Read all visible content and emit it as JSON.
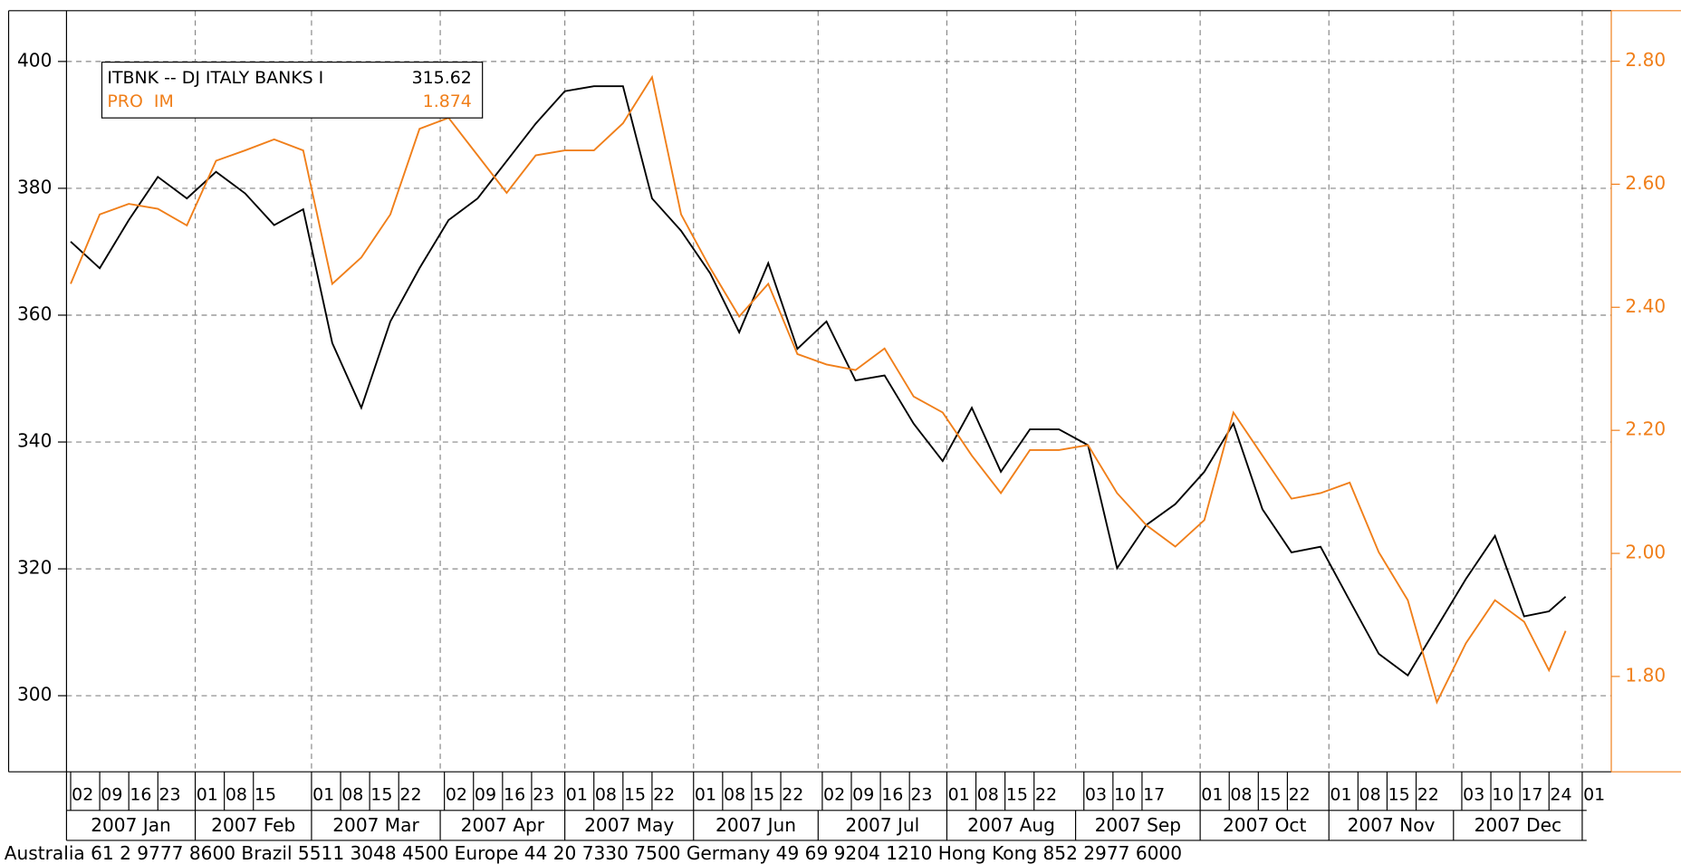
{
  "chart_data": {
    "type": "line",
    "x": [
      "2007-01-02",
      "2007-01-09",
      "2007-01-16",
      "2007-01-23",
      "2007-01-30",
      "2007-02-06",
      "2007-02-13",
      "2007-02-20",
      "2007-02-27",
      "2007-03-06",
      "2007-03-13",
      "2007-03-20",
      "2007-03-27",
      "2007-04-03",
      "2007-04-10",
      "2007-04-17",
      "2007-04-24",
      "2007-05-01",
      "2007-05-08",
      "2007-05-15",
      "2007-05-22",
      "2007-05-29",
      "2007-06-05",
      "2007-06-12",
      "2007-06-19",
      "2007-06-26",
      "2007-07-03",
      "2007-07-10",
      "2007-07-17",
      "2007-07-24",
      "2007-07-31",
      "2007-08-07",
      "2007-08-14",
      "2007-08-21",
      "2007-08-28",
      "2007-09-04",
      "2007-09-11",
      "2007-09-18",
      "2007-09-25",
      "2007-10-02",
      "2007-10-09",
      "2007-10-16",
      "2007-10-23",
      "2007-10-30",
      "2007-11-06",
      "2007-11-13",
      "2007-11-20",
      "2007-11-27",
      "2007-12-04",
      "2007-12-11",
      "2007-12-18",
      "2007-12-24",
      "2007-12-28"
    ],
    "series": [
      {
        "name": "ITBNK -- DJ ITALY BANKS I",
        "color": "#000000",
        "last_value": 315.62,
        "values": [
          371.6,
          367.4,
          375,
          381.8,
          378.4,
          382.6,
          379.2,
          374.2,
          376.7,
          355.6,
          345.4,
          359,
          367.4,
          375,
          378.4,
          384.3,
          390.2,
          395.3,
          396.1,
          396.1,
          378.4,
          373.3,
          366.6,
          357.3,
          368.2,
          354.7,
          359,
          349.7,
          350.5,
          342.9,
          337,
          345.4,
          335.3,
          342,
          342,
          339.5,
          320.1,
          326.9,
          330.2,
          335.3,
          342.9,
          329.4,
          322.6,
          323.5,
          315,
          306.6,
          303.2,
          310.8,
          318.4,
          325.2,
          312.5,
          313.3,
          315.62
        ]
      },
      {
        "name": "PRO  IM",
        "color": "#f07f1a",
        "axis": "y2",
        "last_value": 1.874,
        "values": [
          2.438,
          2.551,
          2.568,
          2.56,
          2.533,
          2.638,
          2.655,
          2.673,
          2.655,
          2.438,
          2.481,
          2.551,
          2.69,
          2.708,
          2.647,
          2.586,
          2.647,
          2.655,
          2.655,
          2.699,
          2.774,
          2.551,
          2.464,
          2.385,
          2.438,
          2.324,
          2.307,
          2.298,
          2.333,
          2.255,
          2.229,
          2.159,
          2.098,
          2.168,
          2.168,
          2.176,
          2.098,
          2.046,
          2.011,
          2.054,
          2.229,
          2.159,
          2.089,
          2.098,
          2.115,
          2.002,
          1.924,
          1.758,
          1.854,
          1.924,
          1.889,
          1.81,
          1.874
        ]
      }
    ],
    "xlim": [
      "2007-01-01",
      "2008-01-08"
    ],
    "xticks": [
      {
        "value": "2007-01-02",
        "label": "02"
      },
      {
        "value": "2007-01-09",
        "label": "09"
      },
      {
        "value": "2007-01-16",
        "label": "16"
      },
      {
        "value": "2007-01-23",
        "label": "23"
      },
      {
        "value": "2007-02-01",
        "label": "01"
      },
      {
        "value": "2007-02-08",
        "label": "08"
      },
      {
        "value": "2007-02-15",
        "label": "15"
      },
      {
        "value": "2007-03-01",
        "label": "01"
      },
      {
        "value": "2007-03-08",
        "label": "08"
      },
      {
        "value": "2007-03-15",
        "label": "15"
      },
      {
        "value": "2007-03-22",
        "label": "22"
      },
      {
        "value": "2007-04-02",
        "label": "02"
      },
      {
        "value": "2007-04-09",
        "label": "09"
      },
      {
        "value": "2007-04-16",
        "label": "16"
      },
      {
        "value": "2007-04-23",
        "label": "23"
      },
      {
        "value": "2007-05-01",
        "label": "01"
      },
      {
        "value": "2007-05-08",
        "label": "08"
      },
      {
        "value": "2007-05-15",
        "label": "15"
      },
      {
        "value": "2007-05-22",
        "label": "22"
      },
      {
        "value": "2007-06-01",
        "label": "01"
      },
      {
        "value": "2007-06-08",
        "label": "08"
      },
      {
        "value": "2007-06-15",
        "label": "15"
      },
      {
        "value": "2007-06-22",
        "label": "22"
      },
      {
        "value": "2007-07-02",
        "label": "02"
      },
      {
        "value": "2007-07-09",
        "label": "09"
      },
      {
        "value": "2007-07-16",
        "label": "16"
      },
      {
        "value": "2007-07-23",
        "label": "23"
      },
      {
        "value": "2007-08-01",
        "label": "01"
      },
      {
        "value": "2007-08-08",
        "label": "08"
      },
      {
        "value": "2007-08-15",
        "label": "15"
      },
      {
        "value": "2007-08-22",
        "label": "22"
      },
      {
        "value": "2007-09-03",
        "label": "03"
      },
      {
        "value": "2007-09-10",
        "label": "10"
      },
      {
        "value": "2007-09-17",
        "label": "17"
      },
      {
        "value": "2007-10-01",
        "label": "01"
      },
      {
        "value": "2007-10-08",
        "label": "08"
      },
      {
        "value": "2007-10-15",
        "label": "15"
      },
      {
        "value": "2007-10-22",
        "label": "22"
      },
      {
        "value": "2007-11-01",
        "label": "01"
      },
      {
        "value": "2007-11-08",
        "label": "08"
      },
      {
        "value": "2007-11-15",
        "label": "15"
      },
      {
        "value": "2007-11-22",
        "label": "22"
      },
      {
        "value": "2007-12-03",
        "label": "03"
      },
      {
        "value": "2007-12-10",
        "label": "10"
      },
      {
        "value": "2007-12-17",
        "label": "17"
      },
      {
        "value": "2007-12-24",
        "label": "24"
      },
      {
        "value": "2008-01-01",
        "label": "01"
      }
    ],
    "month_ticks": [
      {
        "value": "2007-01-01",
        "label": "2007 Jan"
      },
      {
        "value": "2007-02-01",
        "label": "2007 Feb"
      },
      {
        "value": "2007-03-01",
        "label": "2007 Mar"
      },
      {
        "value": "2007-04-01",
        "label": "2007 Apr"
      },
      {
        "value": "2007-05-01",
        "label": "2007 May"
      },
      {
        "value": "2007-06-01",
        "label": "2007 Jun"
      },
      {
        "value": "2007-07-01",
        "label": "2007 Jul"
      },
      {
        "value": "2007-08-01",
        "label": "2007 Aug"
      },
      {
        "value": "2007-09-01",
        "label": "2007 Sep"
      },
      {
        "value": "2007-10-01",
        "label": "2007 Oct"
      },
      {
        "value": "2007-11-01",
        "label": "2007 Nov"
      },
      {
        "value": "2007-12-01",
        "label": "2007 Dec"
      }
    ],
    "ylim": [
      288,
      408
    ],
    "yticks": [
      300,
      320,
      340,
      360,
      380,
      400
    ],
    "y2lim": [
      1.645,
      2.882
    ],
    "y2ticks": [
      {
        "value": 1.8,
        "label": "1.80"
      },
      {
        "value": 2.0,
        "label": "2.00"
      },
      {
        "value": 2.2,
        "label": "2.20"
      },
      {
        "value": 2.4,
        "label": "2.40"
      },
      {
        "value": 2.6,
        "label": "2.60"
      },
      {
        "value": 2.8,
        "label": "2.80"
      }
    ],
    "y2color": "#f07f1a",
    "grid": true,
    "legend": "upper left",
    "footer": "Australia 61 2 9777 8600 Brazil 5511 3048 4500 Europe 44 20 7330 7500 Germany 49 69 9204 1210 Hong Kong 852 2977 6000"
  }
}
